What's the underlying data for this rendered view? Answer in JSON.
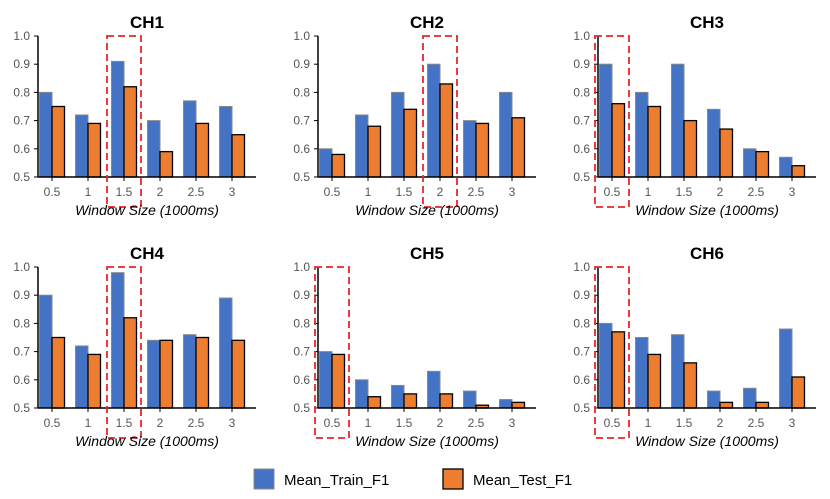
{
  "colors": {
    "train": "#4472C4",
    "train_edge": "#888888",
    "test": "#ED7D31",
    "test_edge": "#000000",
    "highlight": "#e8262a",
    "axis": "#000000",
    "tick_text": "#555555"
  },
  "legend": {
    "train_label": "Mean_Train_F1",
    "test_label": "Mean_Test_F1"
  },
  "chart_data": [
    {
      "type": "bar",
      "title": "CH1",
      "xlabel": "Window Size (1000ms)",
      "ylabel": "",
      "categories": [
        "0.5",
        "1",
        "1.5",
        "2",
        "2.5",
        "3"
      ],
      "yticks": [
        "0.5",
        "0.6",
        "0.7",
        "0.8",
        "0.9",
        "1.0"
      ],
      "ylim": [
        0.5,
        1.0
      ],
      "highlight_index": 2,
      "series": [
        {
          "name": "Mean_Train_F1",
          "values": [
            0.8,
            0.72,
            0.91,
            0.7,
            0.77,
            0.75
          ]
        },
        {
          "name": "Mean_Test_F1",
          "values": [
            0.75,
            0.69,
            0.82,
            0.59,
            0.69,
            0.65
          ]
        }
      ]
    },
    {
      "type": "bar",
      "title": "CH2",
      "xlabel": "Window Size (1000ms)",
      "ylabel": "",
      "categories": [
        "0.5",
        "1",
        "1.5",
        "2",
        "2.5",
        "3"
      ],
      "yticks": [
        "0.5",
        "0.6",
        "0.7",
        "0.8",
        "0.9",
        "1.0"
      ],
      "ylim": [
        0.5,
        1.0
      ],
      "highlight_index": 3,
      "series": [
        {
          "name": "Mean_Train_F1",
          "values": [
            0.6,
            0.72,
            0.8,
            0.9,
            0.7,
            0.8
          ]
        },
        {
          "name": "Mean_Test_F1",
          "values": [
            0.58,
            0.68,
            0.74,
            0.83,
            0.69,
            0.71
          ]
        }
      ]
    },
    {
      "type": "bar",
      "title": "CH3",
      "xlabel": "Window Size (1000ms)",
      "ylabel": "",
      "categories": [
        "0.5",
        "1",
        "1.5",
        "2",
        "2.5",
        "3"
      ],
      "yticks": [
        "0.5",
        "0.6",
        "0.7",
        "0.8",
        "0.9",
        "1.0"
      ],
      "ylim": [
        0.5,
        1.0
      ],
      "highlight_index": 0,
      "series": [
        {
          "name": "Mean_Train_F1",
          "values": [
            0.9,
            0.8,
            0.9,
            0.74,
            0.6,
            0.57
          ]
        },
        {
          "name": "Mean_Test_F1",
          "values": [
            0.76,
            0.75,
            0.7,
            0.67,
            0.59,
            0.54
          ]
        }
      ]
    },
    {
      "type": "bar",
      "title": "CH4",
      "xlabel": "Window Size (1000ms)",
      "ylabel": "",
      "categories": [
        "0.5",
        "1",
        "1.5",
        "2",
        "2.5",
        "3"
      ],
      "yticks": [
        "0.5",
        "0.6",
        "0.7",
        "0.8",
        "0.9",
        "1.0"
      ],
      "ylim": [
        0.5,
        1.0
      ],
      "highlight_index": 2,
      "series": [
        {
          "name": "Mean_Train_F1",
          "values": [
            0.9,
            0.72,
            0.98,
            0.74,
            0.76,
            0.89
          ]
        },
        {
          "name": "Mean_Test_F1",
          "values": [
            0.75,
            0.69,
            0.82,
            0.74,
            0.75,
            0.74
          ]
        }
      ]
    },
    {
      "type": "bar",
      "title": "CH5",
      "xlabel": "Window Size (1000ms)",
      "ylabel": "",
      "categories": [
        "0.5",
        "1",
        "1.5",
        "2",
        "2.5",
        "3"
      ],
      "yticks": [
        "0.5",
        "0.6",
        "0.7",
        "0.8",
        "0.9",
        "1.0"
      ],
      "ylim": [
        0.5,
        1.0
      ],
      "highlight_index": 0,
      "series": [
        {
          "name": "Mean_Train_F1",
          "values": [
            0.7,
            0.6,
            0.58,
            0.63,
            0.56,
            0.53
          ]
        },
        {
          "name": "Mean_Test_F1",
          "values": [
            0.69,
            0.54,
            0.55,
            0.55,
            0.51,
            0.52
          ]
        }
      ]
    },
    {
      "type": "bar",
      "title": "CH6",
      "xlabel": "Window Size (1000ms)",
      "ylabel": "",
      "categories": [
        "0.5",
        "1",
        "1.5",
        "2",
        "2.5",
        "3"
      ],
      "yticks": [
        "0.5",
        "0.6",
        "0.7",
        "0.8",
        "0.9",
        "1.0"
      ],
      "ylim": [
        0.5,
        1.0
      ],
      "highlight_index": 0,
      "series": [
        {
          "name": "Mean_Train_F1",
          "values": [
            0.8,
            0.75,
            0.76,
            0.56,
            0.57,
            0.78
          ]
        },
        {
          "name": "Mean_Test_F1",
          "values": [
            0.77,
            0.69,
            0.66,
            0.52,
            0.52,
            0.61
          ]
        }
      ]
    }
  ]
}
